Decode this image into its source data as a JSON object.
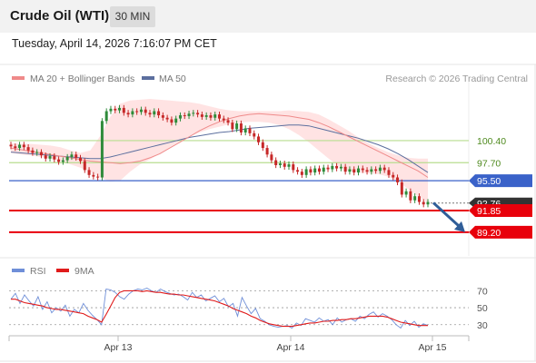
{
  "header": {
    "instrument": "Crude Oil (WTI)",
    "timeframe": "30 MIN",
    "datetime": "Tuesday, April 14, 2026 7:16:07 PM CET"
  },
  "legend": {
    "ma20_label": "MA 20 + Bollinger Bands",
    "ma50_label": "MA 50",
    "credit": "Research © 2026 Trading Central",
    "rsi_label": "RSI",
    "rsi_ma_label": "9MA"
  },
  "colors": {
    "bull": "#2e8b3a",
    "bear": "#c62828",
    "bollinger_fill": "#ffe3e3",
    "ma20": "#ef8a8a",
    "ma50": "#5c6f9e",
    "resistance": "#b7dd8f",
    "pivot": "#3a62c9",
    "support": "#e8000b",
    "current_tag": "#333333",
    "rsi": "#6f8fd8",
    "rsi_ma": "#e01b1b",
    "forecast_arrow": "#2f5d98"
  },
  "chart_data": {
    "type": "candlestick",
    "timeframe": "30 MIN",
    "x_tick_labels": [
      "Apr 13",
      "Apr 14",
      "Apr 15"
    ],
    "ylim": [
      86.3,
      106.5
    ],
    "levels": [
      {
        "label": "100.40",
        "value": 100.4,
        "kind": "resistance"
      },
      {
        "label": "97.70",
        "value": 97.7,
        "kind": "resistance"
      },
      {
        "label": "95.50",
        "value": 95.5,
        "kind": "pivot"
      },
      {
        "label": "91.85",
        "value": 91.85,
        "kind": "support"
      },
      {
        "label": "89.20",
        "value": 89.2,
        "kind": "support"
      }
    ],
    "current_price": {
      "label": "92.76",
      "value": 92.76
    },
    "forecast": {
      "from": 92.8,
      "to": 89.2,
      "direction": "down"
    },
    "close": [
      99.7,
      99.5,
      99.9,
      99.6,
      99.2,
      98.9,
      99.0,
      98.6,
      98.2,
      98.5,
      98.1,
      97.8,
      98.0,
      98.4,
      98.7,
      98.3,
      97.9,
      96.8,
      96.2,
      96.0,
      95.9,
      102.8,
      104.0,
      104.3,
      104.1,
      104.4,
      103.8,
      103.6,
      104.0,
      103.9,
      104.2,
      103.8,
      103.6,
      104.0,
      103.5,
      103.2,
      103.0,
      102.6,
      103.1,
      103.5,
      103.4,
      103.7,
      103.8,
      103.6,
      103.3,
      103.5,
      103.2,
      103.6,
      103.1,
      102.9,
      102.6,
      101.8,
      102.5,
      101.4,
      101.9,
      101.3,
      100.9,
      100.2,
      99.5,
      98.7,
      98.0,
      97.4,
      97.6,
      97.2,
      97.5,
      96.8,
      96.6,
      96.2,
      96.9,
      96.5,
      97.0,
      96.6,
      97.1,
      96.9,
      97.3,
      97.0,
      97.2,
      96.6,
      96.9,
      96.5,
      97.0,
      96.8,
      96.6,
      96.9,
      96.7,
      97.1,
      96.8,
      96.2,
      95.9,
      95.3,
      93.8,
      94.2,
      93.1,
      93.6,
      92.9,
      92.6,
      92.9
    ],
    "ma20": [
      99.5,
      99.3,
      99.1,
      98.9,
      98.7,
      98.5,
      98.3,
      98.1,
      97.9,
      97.8,
      97.7,
      97.6,
      97.7,
      97.9,
      98.3,
      98.8,
      99.5,
      100.2,
      100.9,
      101.6,
      102.2,
      102.7,
      103.1,
      103.4,
      103.6,
      103.7,
      103.6,
      103.5,
      103.4,
      103.2,
      103.0,
      102.6,
      102.1,
      101.5,
      100.9,
      100.3,
      99.7,
      99.1,
      98.5,
      97.9,
      97.3,
      96.7,
      95.9
    ],
    "ma50": [
      99.0,
      98.9,
      98.8,
      98.7,
      98.6,
      98.5,
      98.4,
      98.3,
      98.2,
      98.2,
      98.4,
      98.7,
      99.0,
      99.3,
      99.6,
      99.9,
      100.2,
      100.5,
      100.8,
      101.0,
      101.2,
      101.4,
      101.5,
      101.7,
      101.9,
      102.0,
      102.1,
      102.2,
      102.3,
      102.3,
      102.2,
      101.9,
      101.6,
      101.3,
      101.0,
      100.7,
      100.3,
      99.9,
      99.4,
      98.8,
      98.1,
      97.3,
      96.5
    ],
    "bb_upper": [
      100.1,
      100.0,
      100.0,
      99.9,
      99.8,
      99.6,
      99.2,
      98.9,
      99.2,
      101.0,
      103.3,
      104.9,
      105.3,
      105.4,
      105.5,
      105.4,
      105.3,
      105.2,
      105.1,
      104.9,
      104.6,
      104.3,
      104.1,
      104.0,
      104.0,
      104.0,
      104.0,
      104.0,
      104.1,
      104.0,
      103.9,
      103.6,
      103.0,
      102.3,
      101.6,
      100.8,
      100.1,
      99.5,
      99.0,
      98.6,
      98.3,
      98.2,
      98.2
    ],
    "bb_lower": [
      98.9,
      98.7,
      98.6,
      98.4,
      98.2,
      97.9,
      97.5,
      97.1,
      96.6,
      95.9,
      95.4,
      95.5,
      96.6,
      97.5,
      98.1,
      98.8,
      99.6,
      100.3,
      100.9,
      101.4,
      101.8,
      102.1,
      102.4,
      102.6,
      102.7,
      102.7,
      102.6,
      102.3,
      101.8,
      101.1,
      100.2,
      99.2,
      98.2,
      97.3,
      96.7,
      96.5,
      96.4,
      96.3,
      96.0,
      95.4,
      94.5,
      93.6,
      92.8
    ],
    "rsi": {
      "ylim": [
        18,
        80
      ],
      "levels": [
        {
          "label": "70",
          "value": 70
        },
        {
          "label": "50",
          "value": 50
        },
        {
          "label": "30",
          "value": 30
        }
      ],
      "rsi": [
        60,
        67,
        55,
        65,
        58,
        52,
        63,
        48,
        57,
        44,
        50,
        46,
        53,
        40,
        48,
        44,
        55,
        47,
        41,
        36,
        30,
        72,
        71,
        68,
        63,
        60,
        66,
        70,
        72,
        71,
        73,
        70,
        68,
        72,
        69,
        67,
        65,
        66,
        63,
        59,
        68,
        62,
        65,
        58,
        61,
        64,
        57,
        61,
        51,
        55,
        40,
        62,
        52,
        43,
        49,
        37,
        34,
        30,
        28,
        27,
        28,
        29,
        26,
        32,
        29,
        37,
        35,
        33,
        38,
        34,
        36,
        30,
        38,
        33,
        36,
        37,
        34,
        40,
        37,
        42,
        45,
        39,
        43,
        40,
        36,
        30,
        26,
        35,
        29,
        34,
        27,
        31,
        29
      ],
      "ma9": [
        60,
        60,
        58,
        56,
        55,
        54,
        53,
        52,
        50,
        49,
        48,
        48,
        47,
        46,
        45,
        44,
        43,
        40,
        38,
        36,
        33,
        42,
        52,
        62,
        68,
        70,
        70,
        70,
        70,
        69,
        70,
        69,
        68,
        68,
        67,
        66,
        66,
        65,
        65,
        64,
        63,
        62,
        61,
        60,
        59,
        58,
        56,
        54,
        52,
        49,
        47,
        45,
        43,
        40,
        38,
        35,
        33,
        31,
        30,
        29,
        28,
        28,
        28,
        29,
        30,
        31,
        32,
        32,
        33,
        34,
        34,
        35,
        35,
        36,
        36,
        37,
        37,
        38,
        39,
        40,
        40,
        40,
        40,
        39,
        37,
        35,
        33,
        32,
        31,
        30,
        29,
        29,
        29
      ]
    }
  }
}
